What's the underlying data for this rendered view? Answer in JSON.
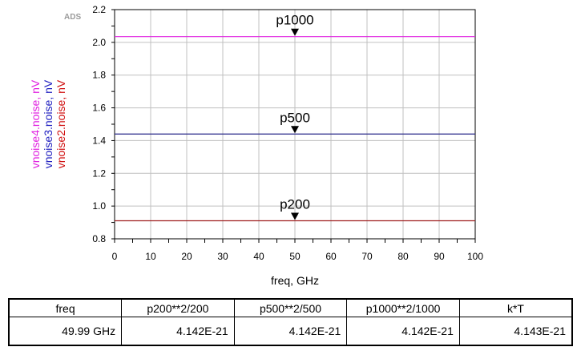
{
  "ads_logo": "ADS",
  "chart_data": {
    "type": "line",
    "xlabel": "freq, GHz",
    "x_ticks": [
      0,
      10,
      20,
      30,
      40,
      50,
      60,
      70,
      80,
      90,
      100
    ],
    "xlim": [
      0,
      100
    ],
    "y_ticks": [
      "0.8",
      "1.0",
      "1.2",
      "1.4",
      "1.6",
      "1.8",
      "2.0",
      "2.2"
    ],
    "ylim": [
      0.8,
      2.2
    ],
    "grid": true,
    "ylabels": [
      {
        "text": "vnoise4.noise, nV",
        "color": "#e020e0"
      },
      {
        "text": "vnoise3.noise, nV",
        "color": "#2020c0"
      },
      {
        "text": "vnoise2.noise, nV",
        "color": "#d01010"
      }
    ],
    "series": [
      {
        "name": "vnoise4.noise, nV",
        "color": "#e020e0",
        "x": [
          0,
          100
        ],
        "y": [
          2.035,
          2.035
        ]
      },
      {
        "name": "vnoise3.noise, nV",
        "color": "#2a2a8a",
        "x": [
          0,
          100
        ],
        "y": [
          1.44,
          1.44
        ]
      },
      {
        "name": "vnoise2.noise, nV",
        "color": "#a02020",
        "x": [
          0,
          100
        ],
        "y": [
          0.91,
          0.91
        ]
      }
    ],
    "markers": [
      {
        "label": "p1000",
        "x": 50,
        "y": 2.035
      },
      {
        "label": "p500",
        "x": 50,
        "y": 1.44
      },
      {
        "label": "p200",
        "x": 50,
        "y": 0.91
      }
    ]
  },
  "table": {
    "headers": [
      "freq",
      "p200**2/200",
      "p500**2/500",
      "p1000**2/1000",
      "k*T"
    ],
    "rows": [
      [
        "49.99 GHz",
        "4.142E-21",
        "4.142E-21",
        "4.142E-21",
        "4.143E-21"
      ]
    ]
  }
}
